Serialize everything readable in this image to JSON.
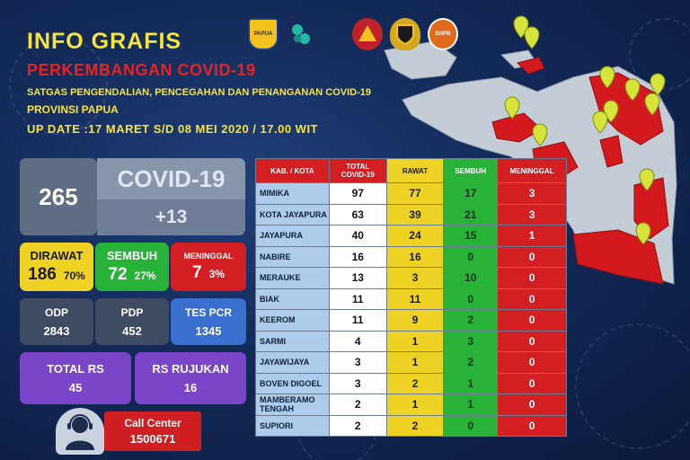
{
  "header": {
    "title": "INFO GRAFIS",
    "subtitle": "PERKEMBANGAN COVID-19",
    "org": "SATGAS PENGENDALIAN, PENCEGAHAN DAN PENANGANAN COVID-19",
    "province": "PROVINSI PAPUA",
    "update": "UP DATE :17 MARET S/D 08 MEI 2020 / 17.00 WIT"
  },
  "logos": {
    "papua": "PAPUA",
    "bnpb": "BNPB"
  },
  "summary": {
    "total": "265",
    "label": "COVID-19",
    "new_cases": "+13"
  },
  "stats": {
    "dirawat": {
      "label": "DIRAWAT",
      "value": "186",
      "pct": "70%"
    },
    "sembuh": {
      "label": "SEMBUH",
      "value": "72",
      "pct": "27%"
    },
    "meninggal": {
      "label": "MENINGGAL",
      "value": "7",
      "pct": "3%"
    }
  },
  "monitoring": {
    "odp": {
      "label": "ODP",
      "value": "2843"
    },
    "pdp": {
      "label": "PDP",
      "value": "452"
    },
    "pcr": {
      "label": "TES PCR",
      "value": "1345"
    }
  },
  "hospitals": {
    "total_rs": {
      "label": "TOTAL RS",
      "value": "45"
    },
    "rs_rujukan": {
      "label": "RS RUJUKAN",
      "value": "16"
    }
  },
  "call_center": {
    "label": "Call Center",
    "number": "1500671"
  },
  "table": {
    "headers": {
      "kab": "KAB. / KOTA",
      "total_line1": "TOTAL",
      "total_line2": "COVID-19",
      "rawat": "RAWAT",
      "sembuh": "SEMBUH",
      "meninggal": "MENINGGAL"
    },
    "rows": [
      {
        "kab": "MIMIKA",
        "total": "97",
        "rawat": "77",
        "sembuh": "17",
        "meninggal": "3"
      },
      {
        "kab": "KOTA JAYAPURA",
        "total": "63",
        "rawat": "39",
        "sembuh": "21",
        "meninggal": "3"
      },
      {
        "kab": "JAYAPURA",
        "total": "40",
        "rawat": "24",
        "sembuh": "15",
        "meninggal": "1"
      },
      {
        "kab": "NABIRE",
        "total": "16",
        "rawat": "16",
        "sembuh": "0",
        "meninggal": "0"
      },
      {
        "kab": "MERAUKE",
        "total": "13",
        "rawat": "3",
        "sembuh": "10",
        "meninggal": "0"
      },
      {
        "kab": "BIAK",
        "total": "11",
        "rawat": "11",
        "sembuh": "0",
        "meninggal": "0"
      },
      {
        "kab": "KEEROM",
        "total": "11",
        "rawat": "9",
        "sembuh": "2",
        "meninggal": "0"
      },
      {
        "kab": "SARMI",
        "total": "4",
        "rawat": "1",
        "sembuh": "3",
        "meninggal": "0"
      },
      {
        "kab": "JAYAWIJAYA",
        "total": "3",
        "rawat": "1",
        "sembuh": "2",
        "meninggal": "0"
      },
      {
        "kab": "BOVEN DIGOEL",
        "total": "3",
        "rawat": "2",
        "sembuh": "1",
        "meninggal": "0"
      },
      {
        "kab": "MAMBERAMO TENGAH",
        "total": "2",
        "rawat": "1",
        "sembuh": "1",
        "meninggal": "0"
      },
      {
        "kab": "SUPIORI",
        "total": "2",
        "rawat": "2",
        "sembuh": "0",
        "meninggal": "0"
      }
    ]
  },
  "colors": {
    "title_yellow": "#f6e33b",
    "subtitle_red": "#e8231f",
    "rawat_yellow": "#efd324",
    "sembuh_green": "#28b237",
    "meninggal_red": "#d41f22",
    "kab_blue": "#aecbec"
  },
  "icons": {
    "map_pin": "map-pin-icon",
    "call_center": "call-center-agent-icon"
  }
}
